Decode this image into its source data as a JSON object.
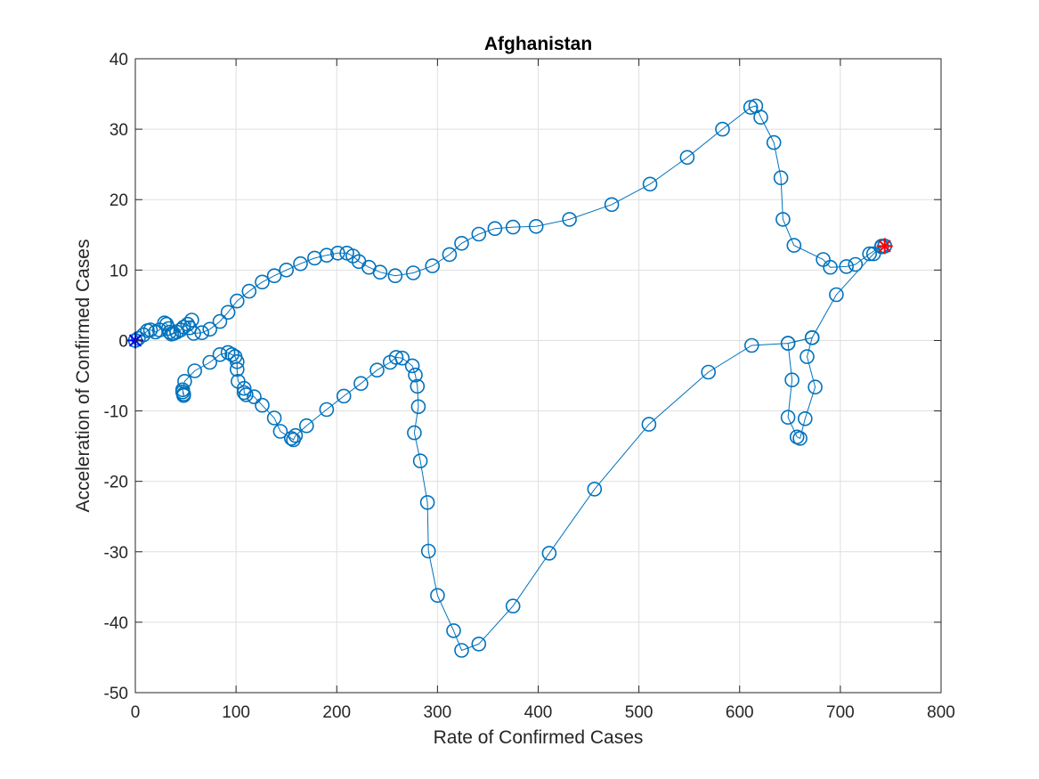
{
  "chart_data": {
    "type": "line",
    "title": "Afghanistan",
    "xlabel": "Rate of Confirmed Cases",
    "ylabel": "Acceleration of Confirmed Cases",
    "xlim": [
      0,
      800
    ],
    "ylim": [
      -50,
      40
    ],
    "xticks": [
      0,
      100,
      200,
      300,
      400,
      500,
      600,
      700,
      800
    ],
    "yticks": [
      -50,
      -40,
      -30,
      -20,
      -10,
      0,
      10,
      20,
      30,
      40
    ],
    "grid": true,
    "legend": "none",
    "colors": {
      "series": "#0072BD",
      "start_marker": "#0000FF",
      "end_marker": "#FF0000",
      "axis": "#262626",
      "grid": "#dfdfdf"
    },
    "series": [
      {
        "marker": "circle",
        "points": [
          [
            0,
            0
          ],
          [
            3,
            0.3
          ],
          [
            8,
            0.8
          ],
          [
            12,
            1.4
          ],
          [
            15,
            1.5
          ],
          [
            20,
            1.2
          ],
          [
            24,
            1.5
          ],
          [
            29,
            2.5
          ],
          [
            31,
            2.3
          ],
          [
            33,
            1.7
          ],
          [
            34,
            1.2
          ],
          [
            36,
            0.9
          ],
          [
            38,
            1.0
          ],
          [
            41,
            1.2
          ],
          [
            45,
            1.5
          ],
          [
            48,
            1.9
          ],
          [
            52,
            2.3
          ],
          [
            56,
            2.9
          ],
          [
            54,
            1.8
          ],
          [
            58,
            1.0
          ],
          [
            66,
            1.1
          ],
          [
            74,
            1.6
          ],
          [
            84,
            2.7
          ],
          [
            92,
            4.0
          ],
          [
            101,
            5.6
          ],
          [
            113,
            7.0
          ],
          [
            126,
            8.3
          ],
          [
            138,
            9.2
          ],
          [
            150,
            10.0
          ],
          [
            164,
            10.9
          ],
          [
            178,
            11.7
          ],
          [
            190,
            12.1
          ],
          [
            201,
            12.4
          ],
          [
            210,
            12.4
          ],
          [
            216,
            12.0
          ],
          [
            222,
            11.2
          ],
          [
            232,
            10.4
          ],
          [
            243,
            9.7
          ],
          [
            258,
            9.2
          ],
          [
            276,
            9.6
          ],
          [
            295,
            10.6
          ],
          [
            312,
            12.2
          ],
          [
            324,
            13.8
          ],
          [
            341,
            15.1
          ],
          [
            357,
            15.9
          ],
          [
            375,
            16.1
          ],
          [
            398,
            16.2
          ],
          [
            431,
            17.2
          ],
          [
            473,
            19.3
          ],
          [
            511,
            22.2
          ],
          [
            548,
            26.0
          ],
          [
            583,
            30.0
          ],
          [
            611,
            33.1
          ],
          [
            616,
            33.3
          ],
          [
            621,
            31.7
          ],
          [
            634,
            28.1
          ],
          [
            641,
            23.1
          ],
          [
            643,
            17.2
          ],
          [
            654,
            13.5
          ],
          [
            683,
            11.5
          ],
          [
            690,
            10.4
          ],
          [
            706,
            10.5
          ],
          [
            715,
            10.8
          ],
          [
            729,
            12.3
          ],
          [
            741,
            13.4
          ],
          [
            744,
            13.4
          ],
          [
            744,
            13.4
          ],
          [
            741,
            13.3
          ],
          [
            733,
            12.3
          ],
          [
            696,
            6.5
          ],
          [
            672,
            0.4
          ],
          [
            648,
            -0.4
          ],
          [
            612,
            -0.7
          ],
          [
            569,
            -4.5
          ],
          [
            510,
            -11.9
          ],
          [
            456,
            -21.1
          ],
          [
            411,
            -30.2
          ],
          [
            375,
            -37.7
          ],
          [
            341,
            -43.1
          ],
          [
            324,
            -44.0
          ],
          [
            316,
            -41.2
          ],
          [
            300,
            -36.2
          ],
          [
            291,
            -29.9
          ],
          [
            290,
            -23.0
          ],
          [
            283,
            -17.1
          ],
          [
            277,
            -13.1
          ],
          [
            281,
            -9.4
          ],
          [
            280,
            -6.5
          ],
          [
            278,
            -4.9
          ],
          [
            275,
            -3.6
          ],
          [
            265,
            -2.5
          ],
          [
            259,
            -2.4
          ],
          [
            253,
            -3.1
          ],
          [
            240,
            -4.2
          ],
          [
            224,
            -6.1
          ],
          [
            207,
            -7.9
          ],
          [
            190,
            -9.8
          ],
          [
            170,
            -12.1
          ],
          [
            159,
            -13.5
          ],
          [
            157,
            -14.1
          ],
          [
            155,
            -13.9
          ],
          [
            144,
            -12.9
          ],
          [
            138,
            -11.0
          ],
          [
            126,
            -9.2
          ],
          [
            118,
            -8.0
          ],
          [
            110,
            -7.7
          ],
          [
            108,
            -7.4
          ],
          [
            108,
            -6.8
          ],
          [
            102,
            -5.8
          ],
          [
            101,
            -4.1
          ],
          [
            101,
            -3.0
          ],
          [
            99,
            -2.3
          ],
          [
            96,
            -2.0
          ],
          [
            92,
            -1.7
          ],
          [
            84,
            -2.0
          ],
          [
            74,
            -3.1
          ],
          [
            59,
            -4.3
          ],
          [
            49,
            -5.8
          ],
          [
            47,
            -7.0
          ],
          [
            48,
            -7.6
          ],
          [
            48,
            -7.8
          ],
          [
            47,
            -7.3
          ]
        ]
      },
      {
        "marker": "circle",
        "points": [
          [
            672,
            0.4
          ],
          [
            648,
            -0.4
          ],
          [
            652,
            -5.6
          ],
          [
            648,
            -10.9
          ],
          [
            657,
            -13.7
          ],
          [
            660,
            -13.9
          ],
          [
            665,
            -11.1
          ],
          [
            675,
            -6.6
          ],
          [
            667,
            -2.3
          ],
          [
            672,
            0.4
          ]
        ]
      }
    ],
    "start_point": [
      0,
      0
    ],
    "end_point": [
      744,
      13.4
    ]
  }
}
